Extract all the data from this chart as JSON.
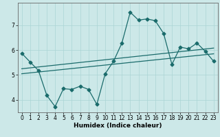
{
  "title": "",
  "xlabel": "Humidex (Indice chaleur)",
  "bg_color": "#cce8e8",
  "line_color": "#1a6b6b",
  "grid_color": "#aad4d4",
  "xlim": [
    -0.5,
    23.5
  ],
  "ylim": [
    3.5,
    7.9
  ],
  "xticks": [
    0,
    1,
    2,
    3,
    4,
    5,
    6,
    7,
    8,
    9,
    10,
    11,
    12,
    13,
    14,
    15,
    16,
    17,
    18,
    19,
    20,
    21,
    22,
    23
  ],
  "yticks": [
    4,
    5,
    6,
    7
  ],
  "line1_x": [
    0,
    1,
    2,
    3,
    4,
    5,
    6,
    7,
    8,
    9,
    10,
    11,
    12,
    13,
    14,
    15,
    16,
    17,
    18,
    19,
    20,
    21,
    22,
    23
  ],
  "line1_y": [
    5.87,
    5.52,
    5.18,
    4.18,
    3.73,
    4.45,
    4.42,
    4.55,
    4.42,
    3.82,
    5.05,
    5.55,
    6.28,
    7.52,
    7.2,
    7.25,
    7.18,
    6.67,
    5.42,
    6.12,
    6.05,
    6.28,
    5.95,
    5.55
  ],
  "line2_x": [
    0,
    23
  ],
  "line2_y": [
    5.05,
    5.85
  ],
  "line3_x": [
    0,
    23
  ],
  "line3_y": [
    5.25,
    6.08
  ],
  "marker": "D",
  "markersize": 2.5,
  "linewidth": 0.9
}
